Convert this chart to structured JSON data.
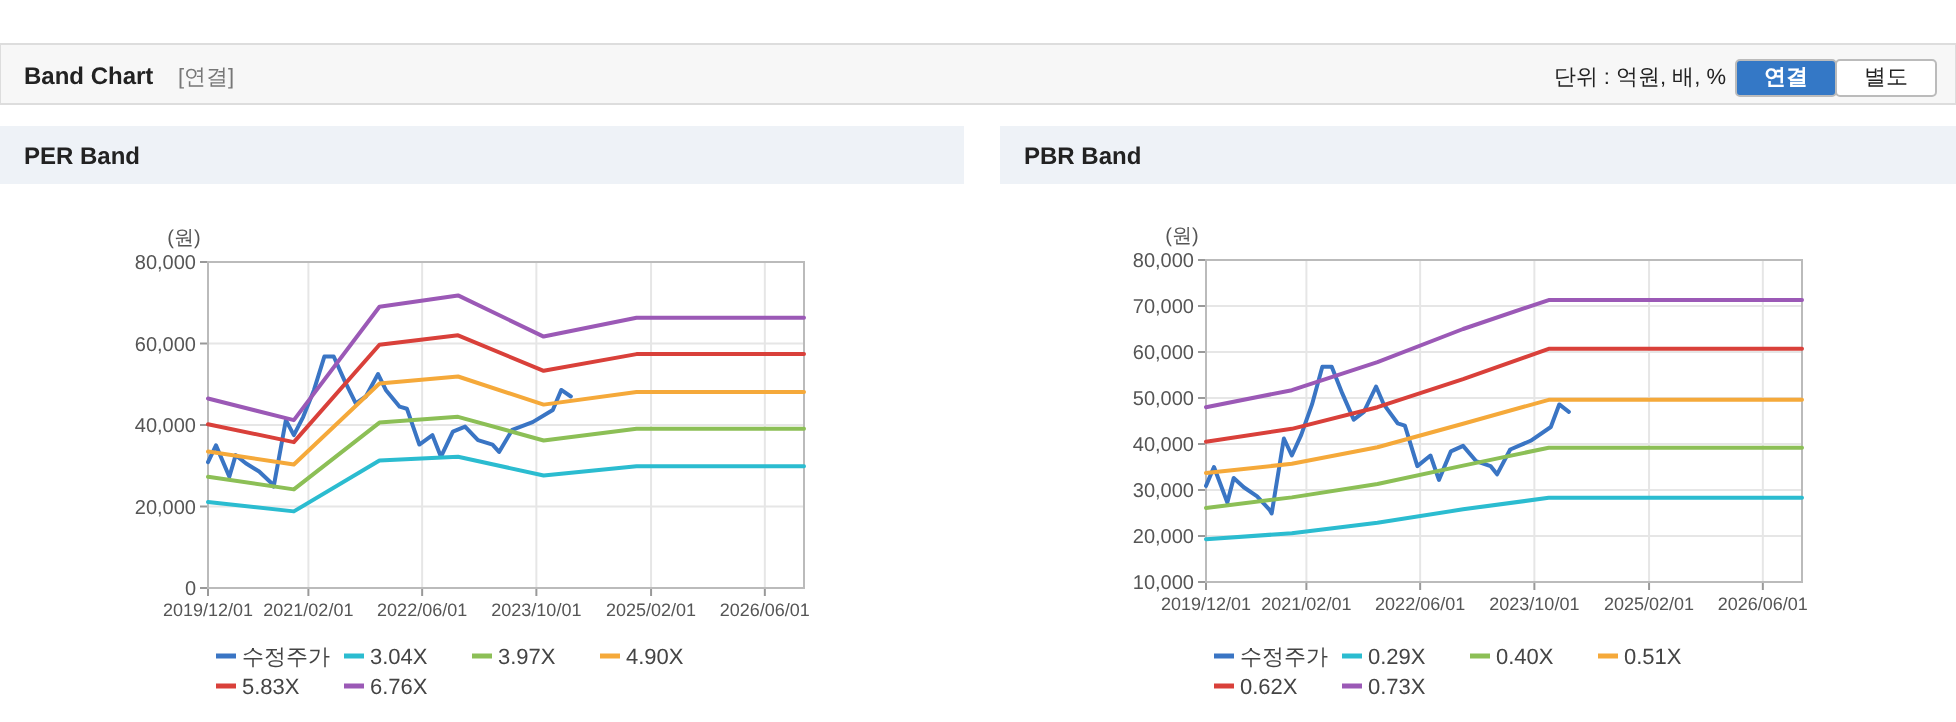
{
  "chart_data": [
    {
      "type": "line",
      "title": "PER Band",
      "ylabel": "(원)",
      "annotations": [
        "Band Chart",
        "[연결]",
        "단위 : 억원, 배, %",
        "연결",
        "별도"
      ],
      "xlim": [
        "2019-12-01",
        "2026-11-15"
      ],
      "xticks": [
        {
          "value": "2019-12-01",
          "label": "2019/12/01"
        },
        {
          "value": "2021-02-01",
          "label": "2021/02/01"
        },
        {
          "value": "2022-06-01",
          "label": "2022/06/01"
        },
        {
          "value": "2023-10-01",
          "label": "2023/10/01"
        },
        {
          "value": "2025-02-01",
          "label": "2025/02/01"
        },
        {
          "value": "2026-06-01",
          "label": "2026/06/01"
        }
      ],
      "ylim": [
        0,
        80000
      ],
      "yticks": [
        0,
        {
          "value": 20000,
          "label": "20,000"
        },
        {
          "value": 40000,
          "label": "40,000"
        },
        {
          "value": 60000,
          "label": "60,000"
        },
        {
          "value": 80000,
          "label": "80,000"
        }
      ],
      "grid": true,
      "legend": "bottom",
      "marker": "none",
      "line_style": "solid",
      "series": [
        {
          "name": "수정주가",
          "color": "#3a75c4",
          "x": [
            "2019-12-01",
            "2020-01-04",
            "2020-03-01",
            "2020-03-28",
            "2020-05-10",
            "2020-07-06",
            "2020-08-28",
            "2020-09-06",
            "2020-10-28",
            "2020-12-01",
            "2021-01-10",
            "2021-02-25",
            "2021-04-10",
            "2021-05-20",
            "2021-07-04",
            "2021-08-22",
            "2021-10-04",
            "2021-11-25",
            "2021-12-28",
            "2022-02-25",
            "2022-03-28",
            "2022-05-20",
            "2022-07-15",
            "2022-08-20",
            "2022-10-10",
            "2022-12-01",
            "2023-01-25",
            "2023-03-28",
            "2023-04-25",
            "2023-06-20",
            "2023-09-15",
            "2023-12-10",
            "2024-01-15",
            "2024-02-25"
          ],
          "values": [
            30900,
            35000,
            27300,
            32600,
            30600,
            28600,
            25700,
            24900,
            41200,
            37500,
            42000,
            48600,
            56800,
            56800,
            51000,
            45300,
            47000,
            52500,
            48600,
            44500,
            44000,
            35200,
            37500,
            32200,
            38400,
            39600,
            36300,
            35200,
            33400,
            38800,
            40700,
            43700,
            48600,
            47000
          ]
        },
        {
          "name": "3.04X",
          "color": "#2bbcd0",
          "x": [
            "2019-12-01",
            "2020-12-01",
            "2021-12-01",
            "2022-11-01",
            "2023-11-01",
            "2024-12-01",
            "2026-11-15"
          ],
          "values": [
            21100,
            18800,
            31300,
            32200,
            27600,
            29900,
            29900
          ]
        },
        {
          "name": "3.97X",
          "color": "#8cbf56",
          "x": [
            "2019-12-01",
            "2020-12-01",
            "2021-12-01",
            "2022-11-01",
            "2023-11-01",
            "2024-12-01",
            "2026-11-15"
          ],
          "values": [
            27300,
            24200,
            40600,
            42000,
            36200,
            39100,
            39100
          ]
        },
        {
          "name": "4.90X",
          "color": "#f5a93a",
          "x": [
            "2019-12-01",
            "2020-12-01",
            "2021-12-01",
            "2022-11-01",
            "2023-11-01",
            "2024-12-01",
            "2026-11-15"
          ],
          "values": [
            33500,
            30300,
            50200,
            51900,
            45000,
            48100,
            48100
          ]
        },
        {
          "name": "5.83X",
          "color": "#d9403a",
          "x": [
            "2019-12-01",
            "2020-12-01",
            "2021-12-01",
            "2022-11-01",
            "2023-11-01",
            "2024-12-01",
            "2026-11-15"
          ],
          "values": [
            40200,
            35800,
            59700,
            62000,
            53300,
            57400,
            57400
          ]
        },
        {
          "name": "6.76X",
          "color": "#9b59b6",
          "x": [
            "2019-12-01",
            "2020-12-01",
            "2021-12-01",
            "2022-11-01",
            "2023-11-01",
            "2024-12-01",
            "2026-11-15"
          ],
          "values": [
            46500,
            41200,
            69000,
            71800,
            61700,
            66300,
            66300
          ]
        }
      ]
    },
    {
      "type": "line",
      "title": "PBR Band",
      "ylabel": "(원)",
      "xlim": [
        "2019-12-01",
        "2026-11-15"
      ],
      "xticks": [
        {
          "value": "2019-12-01",
          "label": "2019/12/01"
        },
        {
          "value": "2021-02-01",
          "label": "2021/02/01"
        },
        {
          "value": "2022-06-01",
          "label": "2022/06/01"
        },
        {
          "value": "2023-10-01",
          "label": "2023/10/01"
        },
        {
          "value": "2025-02-01",
          "label": "2025/02/01"
        },
        {
          "value": "2026-06-01",
          "label": "2026/06/01"
        }
      ],
      "ylim": [
        10000,
        80000
      ],
      "yticks": [
        {
          "value": 10000,
          "label": "10,000"
        },
        {
          "value": 20000,
          "label": "20,000"
        },
        {
          "value": 30000,
          "label": "30,000"
        },
        {
          "value": 40000,
          "label": "40,000"
        },
        {
          "value": 50000,
          "label": "50,000"
        },
        {
          "value": 60000,
          "label": "60,000"
        },
        {
          "value": 70000,
          "label": "70,000"
        },
        {
          "value": 80000,
          "label": "80,000"
        }
      ],
      "grid": true,
      "legend": "bottom",
      "marker": "none",
      "line_style": "solid",
      "series": [
        {
          "name": "수정주가",
          "color": "#3a75c4",
          "x": [
            "2019-12-01",
            "2020-01-04",
            "2020-03-01",
            "2020-03-28",
            "2020-05-10",
            "2020-07-06",
            "2020-08-28",
            "2020-09-06",
            "2020-10-28",
            "2020-12-01",
            "2021-01-10",
            "2021-02-25",
            "2021-04-10",
            "2021-05-20",
            "2021-07-04",
            "2021-08-22",
            "2021-10-04",
            "2021-11-25",
            "2021-12-28",
            "2022-02-25",
            "2022-03-28",
            "2022-05-20",
            "2022-07-15",
            "2022-08-20",
            "2022-10-10",
            "2022-12-01",
            "2023-01-25",
            "2023-03-28",
            "2023-04-25",
            "2023-06-20",
            "2023-09-15",
            "2023-12-10",
            "2024-01-15",
            "2024-02-25"
          ],
          "values": [
            30900,
            35000,
            27300,
            32600,
            30600,
            28600,
            25700,
            24900,
            41200,
            37500,
            42000,
            48600,
            56800,
            56800,
            51000,
            45300,
            47000,
            52500,
            48600,
            44500,
            44000,
            35200,
            37500,
            32200,
            38400,
            39600,
            36300,
            35200,
            33400,
            38800,
            40700,
            43700,
            48600,
            47000
          ]
        },
        {
          "name": "0.29X",
          "color": "#2bbcd0",
          "x": [
            "2019-12-01",
            "2020-12-01",
            "2021-12-01",
            "2022-12-01",
            "2023-12-01",
            "2026-11-15"
          ],
          "values": [
            19300,
            20600,
            22900,
            25800,
            28300,
            28300
          ]
        },
        {
          "name": "0.40X",
          "color": "#8cbf56",
          "x": [
            "2019-12-01",
            "2020-12-01",
            "2021-12-01",
            "2022-12-01",
            "2023-12-01",
            "2026-11-15"
          ],
          "values": [
            26100,
            28400,
            31300,
            35300,
            39200,
            39200
          ]
        },
        {
          "name": "0.51X",
          "color": "#f5a93a",
          "x": [
            "2019-12-01",
            "2020-12-01",
            "2021-12-01",
            "2022-12-01",
            "2023-12-01",
            "2026-11-15"
          ],
          "values": [
            33700,
            35700,
            39300,
            44400,
            49600,
            49600
          ]
        },
        {
          "name": "0.62X",
          "color": "#d9403a",
          "x": [
            "2019-12-01",
            "2020-12-01",
            "2021-12-01",
            "2022-12-01",
            "2023-12-01",
            "2026-11-15"
          ],
          "values": [
            40500,
            43300,
            48000,
            54100,
            60700,
            60700
          ]
        },
        {
          "name": "0.73X",
          "color": "#9b59b6",
          "x": [
            "2019-12-01",
            "2020-12-01",
            "2021-12-01",
            "2022-12-01",
            "2023-12-01",
            "2026-11-15"
          ],
          "values": [
            48000,
            51700,
            57800,
            65000,
            71300,
            71300
          ]
        }
      ]
    }
  ]
}
